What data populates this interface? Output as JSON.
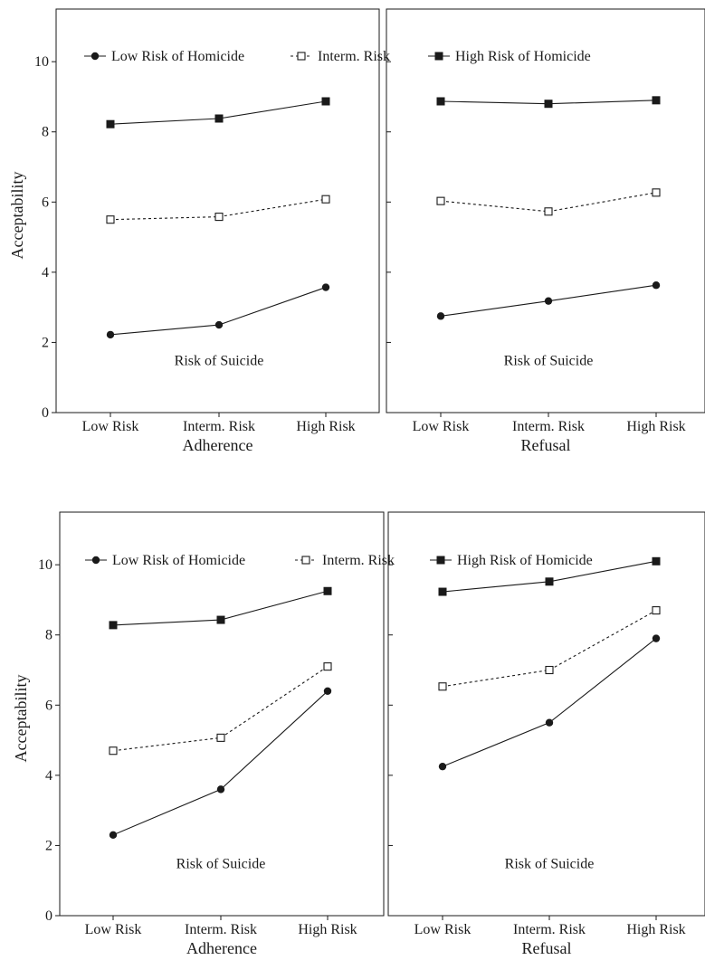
{
  "chart_data": [
    {
      "type": "line",
      "panel": "top-left",
      "categories": [
        "Low Risk",
        "Interm. Risk",
        "High Risk"
      ],
      "xlabel": "Adherence",
      "ylabel": "Acceptability",
      "annotation": "Risk of Suicide",
      "ylim": [
        0,
        11.5
      ],
      "yticks": [
        0,
        2,
        4,
        6,
        8,
        10
      ],
      "series": [
        {
          "name": "Low Risk of Homicide",
          "values": [
            2.22,
            2.5,
            3.57
          ]
        },
        {
          "name": "Interm. Risk",
          "values": [
            5.5,
            5.58,
            6.08
          ]
        },
        {
          "name": "High Risk of Homicide",
          "values": [
            8.22,
            8.38,
            8.87
          ]
        }
      ]
    },
    {
      "type": "line",
      "panel": "top-right",
      "categories": [
        "Low Risk",
        "Interm. Risk",
        "High Risk"
      ],
      "xlabel": "Refusal",
      "annotation": "Risk of Suicide",
      "ylim": [
        0,
        11.5
      ],
      "series": [
        {
          "name": "Low Risk of Homicide",
          "values": [
            2.75,
            3.18,
            3.63
          ]
        },
        {
          "name": "Interm. Risk",
          "values": [
            6.03,
            5.73,
            6.27
          ]
        },
        {
          "name": "High Risk of Homicide",
          "values": [
            8.87,
            8.8,
            8.9
          ]
        }
      ]
    },
    {
      "type": "line",
      "panel": "bottom-left",
      "categories": [
        "Low Risk",
        "Interm. Risk",
        "High Risk"
      ],
      "xlabel": "Adherence",
      "ylabel": "Acceptability",
      "annotation": "Risk of Suicide",
      "ylim": [
        0,
        11.5
      ],
      "yticks": [
        0,
        2,
        4,
        6,
        8,
        10
      ],
      "series": [
        {
          "name": "Low Risk of Homicide",
          "values": [
            2.3,
            3.6,
            6.4
          ]
        },
        {
          "name": "Interm. Risk",
          "values": [
            4.7,
            5.07,
            7.1
          ]
        },
        {
          "name": "High Risk of Homicide",
          "values": [
            8.28,
            8.43,
            9.25
          ]
        }
      ]
    },
    {
      "type": "line",
      "panel": "bottom-right",
      "categories": [
        "Low Risk",
        "Interm. Risk",
        "High Risk"
      ],
      "xlabel": "Refusal",
      "annotation": "Risk of Suicide",
      "ylim": [
        0,
        11.5
      ],
      "series": [
        {
          "name": "Low Risk of Homicide",
          "values": [
            4.25,
            5.5,
            7.9
          ]
        },
        {
          "name": "Interm. Risk",
          "values": [
            6.53,
            7.0,
            8.7
          ]
        },
        {
          "name": "High Risk of Homicide",
          "values": [
            9.23,
            9.52,
            10.1
          ]
        }
      ]
    }
  ],
  "legend": [
    "Low Risk of Homicide",
    "Interm. Risk",
    "High Risk of Homicide"
  ],
  "style": {
    "ink": "#1a1a1a",
    "marker_fill_open": "#ffffff"
  }
}
